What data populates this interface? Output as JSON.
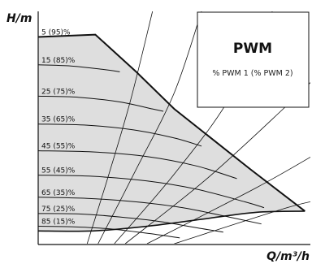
{
  "chart_data": {
    "type": "line",
    "title": "",
    "xlabel": "Q/m³/h",
    "ylabel": "H/m",
    "xlim": [
      0,
      100
    ],
    "ylim": [
      0,
      100
    ],
    "grid": false,
    "legend": {
      "placement": "top-right",
      "title": "PWM",
      "subtitle": "% PWM 1 (% PWM 2)"
    },
    "colors": {
      "envelope_fill": "#dedede",
      "curve": "#111111",
      "envelope_edge": "#111111"
    },
    "speed_curves": [
      {
        "label": "5 (95)%",
        "points": [
          [
            0,
            89
          ],
          [
            21,
            90
          ]
        ]
      },
      {
        "label": "15 (85)%",
        "points": [
          [
            0,
            77
          ],
          [
            12,
            76.5
          ],
          [
            24,
            75
          ],
          [
            30,
            74
          ]
        ]
      },
      {
        "label": "25 (75)%",
        "points": [
          [
            0,
            63.5
          ],
          [
            15,
            63
          ],
          [
            30,
            61
          ],
          [
            42,
            58
          ],
          [
            46,
            57
          ]
        ]
      },
      {
        "label": "35 (65)%",
        "points": [
          [
            0,
            51.5
          ],
          [
            18,
            51
          ],
          [
            35,
            49
          ],
          [
            50,
            45.5
          ],
          [
            60,
            42
          ]
        ]
      },
      {
        "label": "45 (55)%",
        "points": [
          [
            0,
            40
          ],
          [
            20,
            39.5
          ],
          [
            40,
            37.5
          ],
          [
            58,
            33.5
          ],
          [
            73,
            28
          ]
        ]
      },
      {
        "label": "55 (45)%",
        "points": [
          [
            0,
            29.5
          ],
          [
            20,
            29
          ],
          [
            40,
            27
          ],
          [
            58,
            23.5
          ],
          [
            76,
            18
          ],
          [
            83,
            15.5
          ]
        ]
      },
      {
        "label": "65 (35)%",
        "points": [
          [
            0,
            20
          ],
          [
            18,
            19.5
          ],
          [
            36,
            18
          ],
          [
            53,
            15.5
          ],
          [
            70,
            11.5
          ],
          [
            82,
            8.5
          ]
        ]
      },
      {
        "label": "75 (25)%",
        "points": [
          [
            0,
            13
          ],
          [
            15,
            12.8
          ],
          [
            30,
            11.5
          ],
          [
            45,
            9.5
          ],
          [
            60,
            6.5
          ],
          [
            68,
            5
          ]
        ]
      },
      {
        "label": "85 (15)%",
        "points": [
          [
            0,
            7.5
          ],
          [
            12,
            7.3
          ],
          [
            25,
            6.5
          ],
          [
            38,
            4.8
          ],
          [
            48,
            3.2
          ],
          [
            52,
            2.5
          ]
        ]
      }
    ],
    "envelope_max": [
      [
        0,
        89
      ],
      [
        21,
        90
      ],
      [
        36,
        74
      ],
      [
        50,
        58
      ],
      [
        64,
        45
      ],
      [
        78,
        32
      ],
      [
        98,
        14
      ]
    ],
    "envelope_min": [
      [
        0,
        5.5
      ],
      [
        20,
        5.5
      ],
      [
        40,
        7.5
      ],
      [
        60,
        10.5
      ],
      [
        80,
        13.5
      ],
      [
        98,
        14
      ]
    ],
    "system_curves": [
      [
        [
          18,
          0
        ],
        [
          26,
          30
        ],
        [
          34,
          62
        ],
        [
          42,
          100
        ]
      ],
      [
        [
          22,
          0
        ],
        [
          36,
          32
        ],
        [
          50,
          65
        ],
        [
          60,
          100
        ]
      ],
      [
        [
          28,
          0
        ],
        [
          50,
          30
        ],
        [
          70,
          62
        ],
        [
          86,
          100
        ]
      ],
      [
        [
          32,
          0
        ],
        [
          62,
          28
        ],
        [
          90,
          58
        ],
        [
          104,
          74
        ]
      ],
      [
        [
          40,
          0
        ],
        [
          80,
          24
        ],
        [
          104,
          40
        ]
      ],
      [
        [
          50,
          0
        ],
        [
          90,
          15
        ],
        [
          104,
          19
        ]
      ]
    ]
  }
}
